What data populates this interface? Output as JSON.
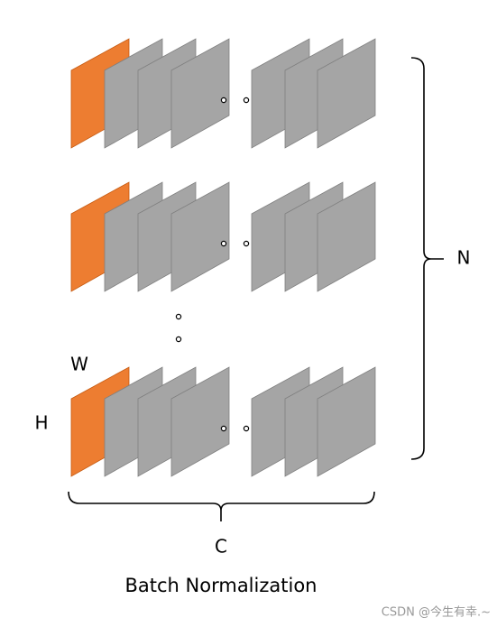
{
  "labels": {
    "width": "W",
    "height": "H",
    "batch": "N",
    "channel": "C"
  },
  "title": "Batch Normalization",
  "watermark": "CSDN @今生有幸.~"
}
